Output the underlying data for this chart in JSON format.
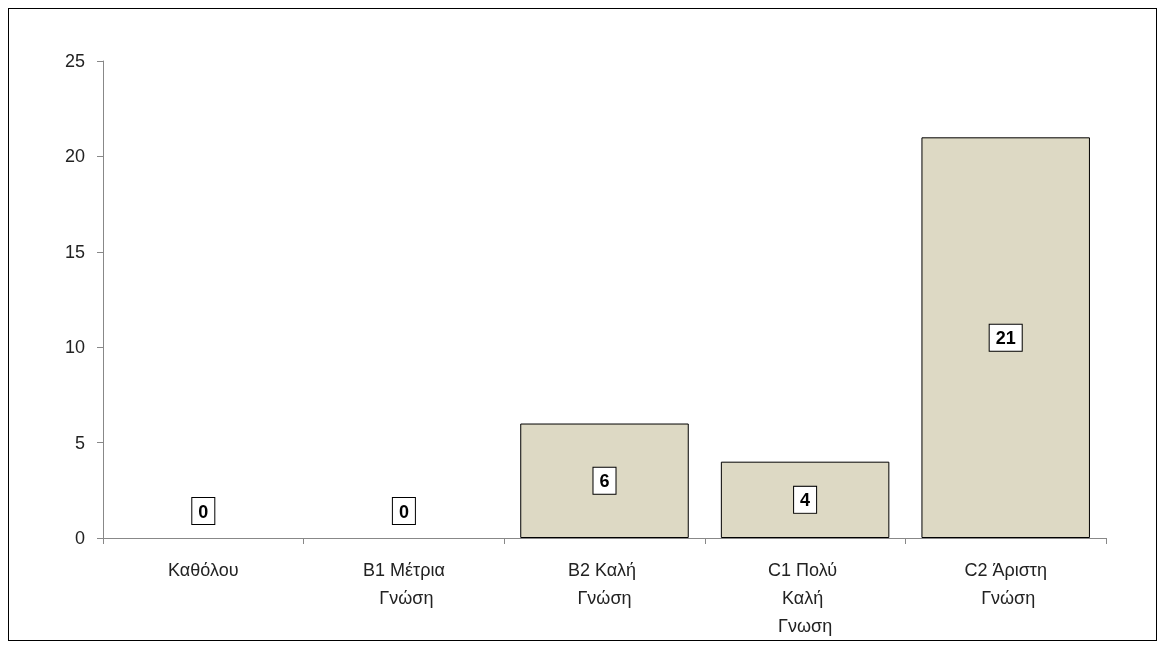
{
  "chart_data": {
    "type": "bar",
    "categories": [
      "Καθόλου",
      "B1 Μέτρια Γνώση",
      "B2 Καλή Γνώση",
      "C1 Πολύ Καλή Γνωση",
      "C2 Άριστη Γνώση"
    ],
    "values": [
      0,
      0,
      6,
      4,
      21
    ],
    "color": "#ddd9c4",
    "ylim": [
      0,
      25
    ],
    "yticks": [
      0,
      5,
      10,
      15,
      20,
      25
    ],
    "grid": false,
    "data_labels": true
  }
}
